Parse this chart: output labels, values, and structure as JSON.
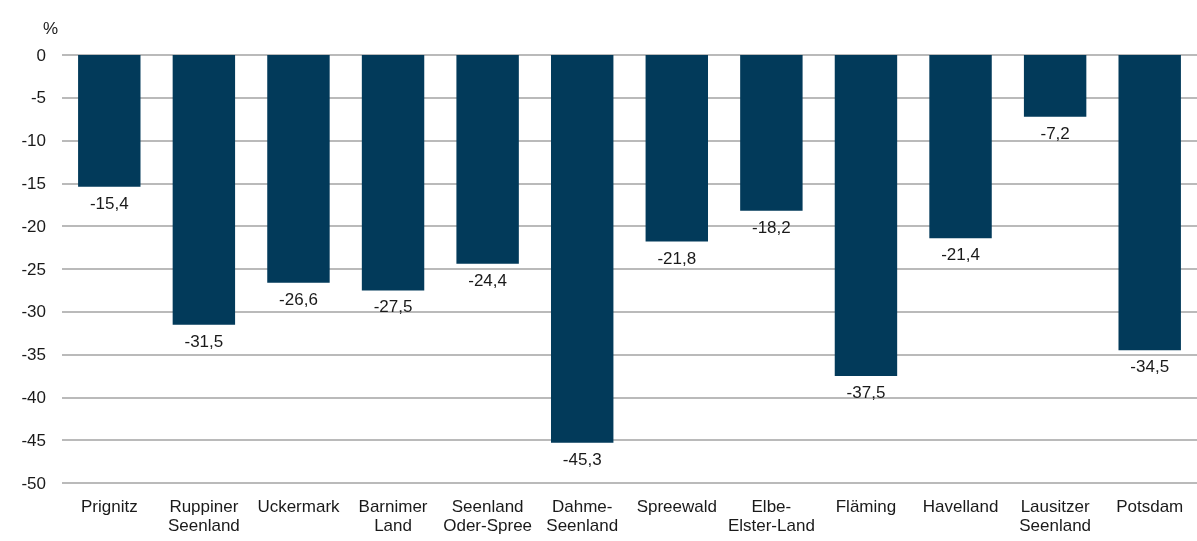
{
  "chart_data": {
    "type": "bar",
    "ylabel": "%",
    "categories": [
      "Prignitz",
      "Ruppiner Seenland",
      "Uckermark",
      "Barnimer Land",
      "Seenland Oder-Spree",
      "Dahme-Seenland",
      "Spreewald",
      "Elbe-Elster-Land",
      "Fläming",
      "Havelland",
      "Lausitzer Seenland",
      "Potsdam"
    ],
    "values": [
      -15.4,
      -31.5,
      -26.6,
      -27.5,
      -24.4,
      -45.3,
      -21.8,
      -18.2,
      -37.5,
      -21.4,
      -7.2,
      -34.5
    ],
    "value_labels": [
      "-15,4",
      "-31,5",
      "-26,6",
      "-27,5",
      "-24,4",
      "-45,3",
      "-21,8",
      "-18,2",
      "-37,5",
      "-21,4",
      "-7,2",
      "-34,5"
    ],
    "color": "#023a5a",
    "ylim": [
      -50,
      0
    ],
    "yticks": [
      0,
      -5,
      -10,
      -15,
      -20,
      -25,
      -30,
      -35,
      -40,
      -45,
      -50
    ],
    "grid": "y"
  }
}
